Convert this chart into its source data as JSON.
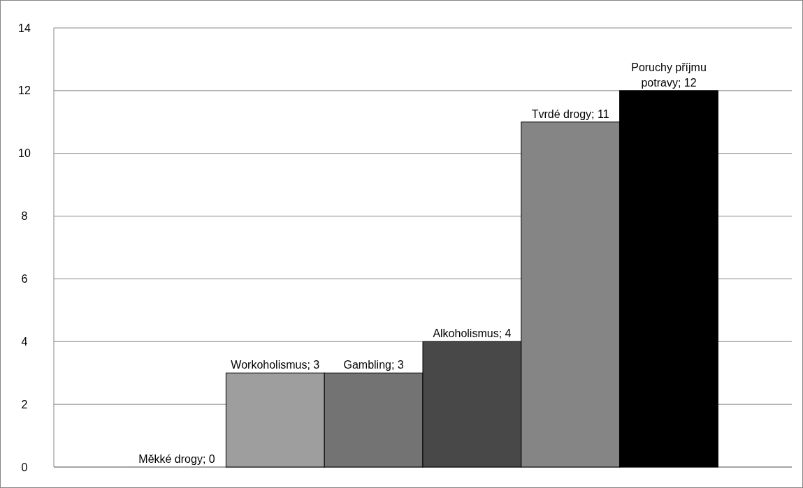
{
  "chart_data": {
    "type": "bar",
    "categories": [
      null,
      null,
      null,
      null,
      null,
      null
    ],
    "values": [
      0,
      3,
      3,
      4,
      11,
      12
    ],
    "colors": [
      "#9e9e9e",
      "#9e9e9e",
      "#737373",
      "#484848",
      "#858585",
      "#000000"
    ],
    "value_labels": [
      "Měkké drogy; 0",
      "Workoholismus; 3",
      "Gambling; 3",
      "Alkoholismus; 4",
      "Tvrdé drogy; 11",
      "Poruchy příjmu potravy; 12"
    ],
    "ylim": [
      0,
      14
    ],
    "yticks": [
      0,
      2,
      4,
      6,
      8,
      10,
      12,
      14
    ],
    "grid": "y"
  }
}
